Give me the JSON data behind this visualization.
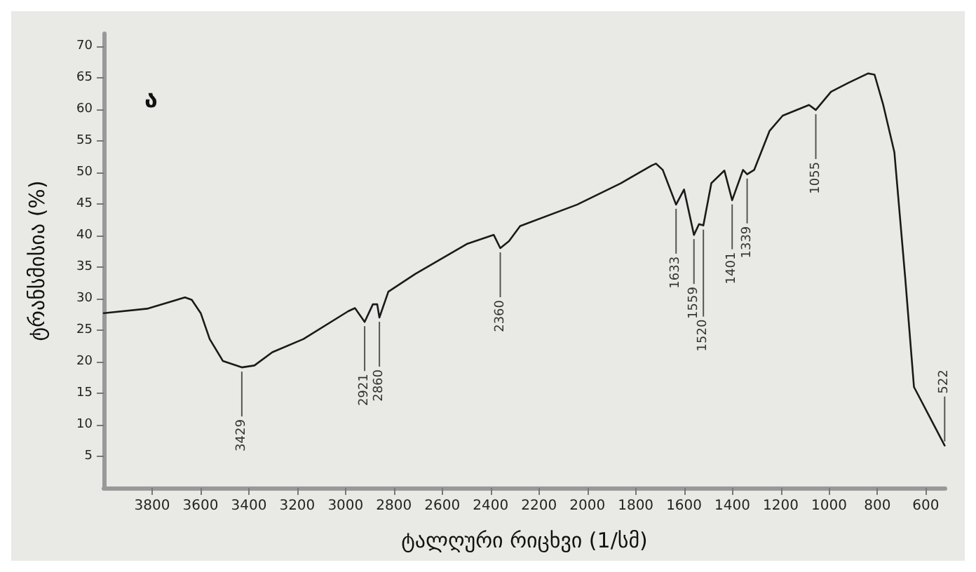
{
  "chart_data": {
    "type": "line",
    "xlabel": "ტალღური რიცხვი (1/სმ)",
    "ylabel": "ტრანსმისია (%)",
    "xlim": [
      4000,
      520
    ],
    "xticks": [
      3800,
      3600,
      3400,
      3200,
      3000,
      2800,
      2600,
      2400,
      2200,
      2000,
      1800,
      1600,
      1400,
      1200,
      1000,
      800,
      600
    ],
    "ylim": [
      0,
      72
    ],
    "yticks": [
      5,
      10,
      15,
      20,
      25,
      30,
      35,
      40,
      45,
      50,
      55,
      60,
      65,
      70
    ],
    "grid": false,
    "series": [
      {
        "color": "#1a1a1a",
        "x": [
          4000,
          3821,
          3664,
          3636,
          3599,
          3562,
          3507,
          3429,
          3377,
          3303,
          3174,
          2989,
          2961,
          2921,
          2887,
          2869,
          2860,
          2823,
          2712,
          2496,
          2387,
          2360,
          2324,
          2278,
          2042,
          1861,
          1734,
          1716,
          1688,
          1633,
          1600,
          1559,
          1538,
          1520,
          1487,
          1433,
          1401,
          1356,
          1339,
          1310,
          1246,
          1192,
          1083,
          1055,
          992,
          920,
          838,
          812,
          776,
          730,
          685,
          649,
          522
        ],
        "values": [
          27.7,
          28.4,
          30.2,
          29.8,
          27.7,
          23.6,
          20.1,
          19.1,
          19.4,
          21.5,
          23.6,
          28.0,
          28.5,
          26.3,
          29.1,
          29.1,
          27.0,
          31.1,
          33.9,
          38.7,
          40.1,
          38.0,
          39.1,
          41.5,
          44.9,
          48.3,
          51.1,
          51.4,
          50.4,
          44.9,
          47.3,
          40.1,
          41.8,
          41.6,
          48.3,
          50.3,
          45.6,
          50.4,
          49.7,
          50.4,
          56.6,
          59.0,
          60.7,
          59.9,
          62.8,
          64.2,
          65.7,
          65.5,
          60.7,
          53.2,
          33.2,
          16.0,
          6.7
        ]
      }
    ],
    "annotations": [
      "ა",
      {
        "text": "3429",
        "x": 3429,
        "y": 19.1
      },
      {
        "text": "2921",
        "x": 2921,
        "y": 26.3
      },
      {
        "text": "2860",
        "x": 2860,
        "y": 27.0
      },
      {
        "text": "2360",
        "x": 2360,
        "y": 38.0
      },
      {
        "text": "1633",
        "x": 1633,
        "y": 44.9
      },
      {
        "text": "1559",
        "x": 1559,
        "y": 40.1
      },
      {
        "text": "1520",
        "x": 1520,
        "y": 41.6
      },
      {
        "text": "1401",
        "x": 1401,
        "y": 45.6
      },
      {
        "text": "1339",
        "x": 1339,
        "y": 49.7
      },
      {
        "text": "1055",
        "x": 1055,
        "y": 59.9
      },
      {
        "text": "522",
        "x": 522,
        "y": 6.7
      }
    ]
  }
}
